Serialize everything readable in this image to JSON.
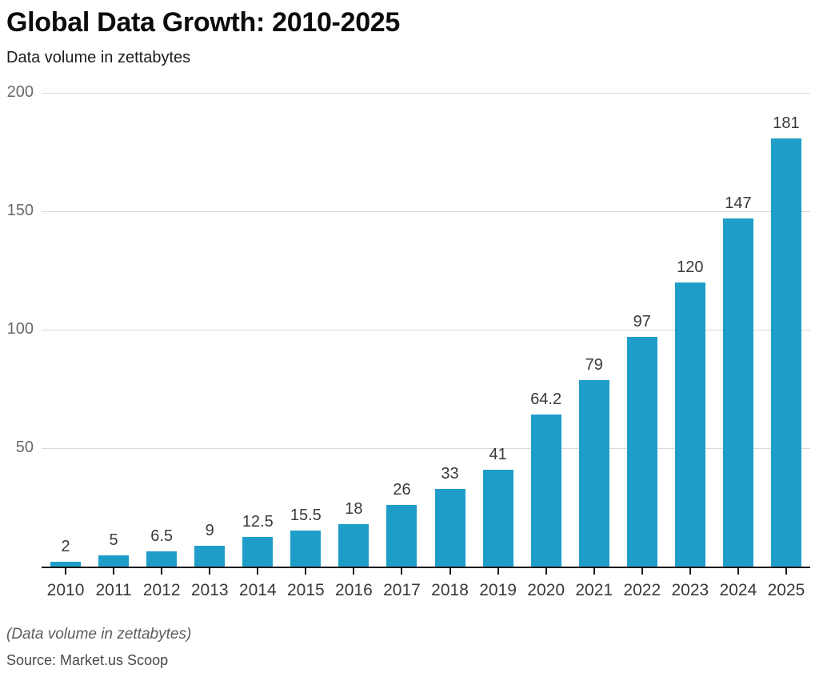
{
  "header": {
    "title": "Global Data Growth: 2010-2025",
    "subtitle": "Data volume in zettabytes"
  },
  "chart_data": {
    "type": "bar",
    "title": "Global Data Growth: 2010-2025",
    "subtitle": "Data volume in zettabytes",
    "categories": [
      "2010",
      "2011",
      "2012",
      "2013",
      "2014",
      "2015",
      "2016",
      "2017",
      "2018",
      "2019",
      "2020",
      "2021",
      "2022",
      "2023",
      "2024",
      "2025"
    ],
    "values": [
      2,
      5,
      6.5,
      9,
      12.5,
      15.5,
      18,
      26,
      33,
      41,
      64.2,
      79,
      97,
      120,
      147,
      181
    ],
    "value_labels": [
      "2",
      "5",
      "6.5",
      "9",
      "12.5",
      "15.5",
      "18",
      "26",
      "33",
      "41",
      "64.2",
      "79",
      "97",
      "120",
      "147",
      "181"
    ],
    "xlabel": "",
    "ylabel": "",
    "ylim": [
      0,
      200
    ],
    "yticks": [
      50,
      100,
      150,
      200
    ],
    "grid": "horizontal-only",
    "legend": "none",
    "bar_color": "#1f9dc9"
  },
  "footer": {
    "note": "(Data volume in zettabytes)",
    "source": "Source: Market.us Scoop"
  },
  "colors": {
    "bar": "#1f9dc9",
    "gridline": "#d9d9d9",
    "axis": "#1a1a1a",
    "y_tick_label": "#6b6b6b",
    "x_tick_label": "#3a3a3a",
    "value_label": "#3a3a3a",
    "title": "#0b0b0b",
    "footnote": "#5c5c5c"
  }
}
